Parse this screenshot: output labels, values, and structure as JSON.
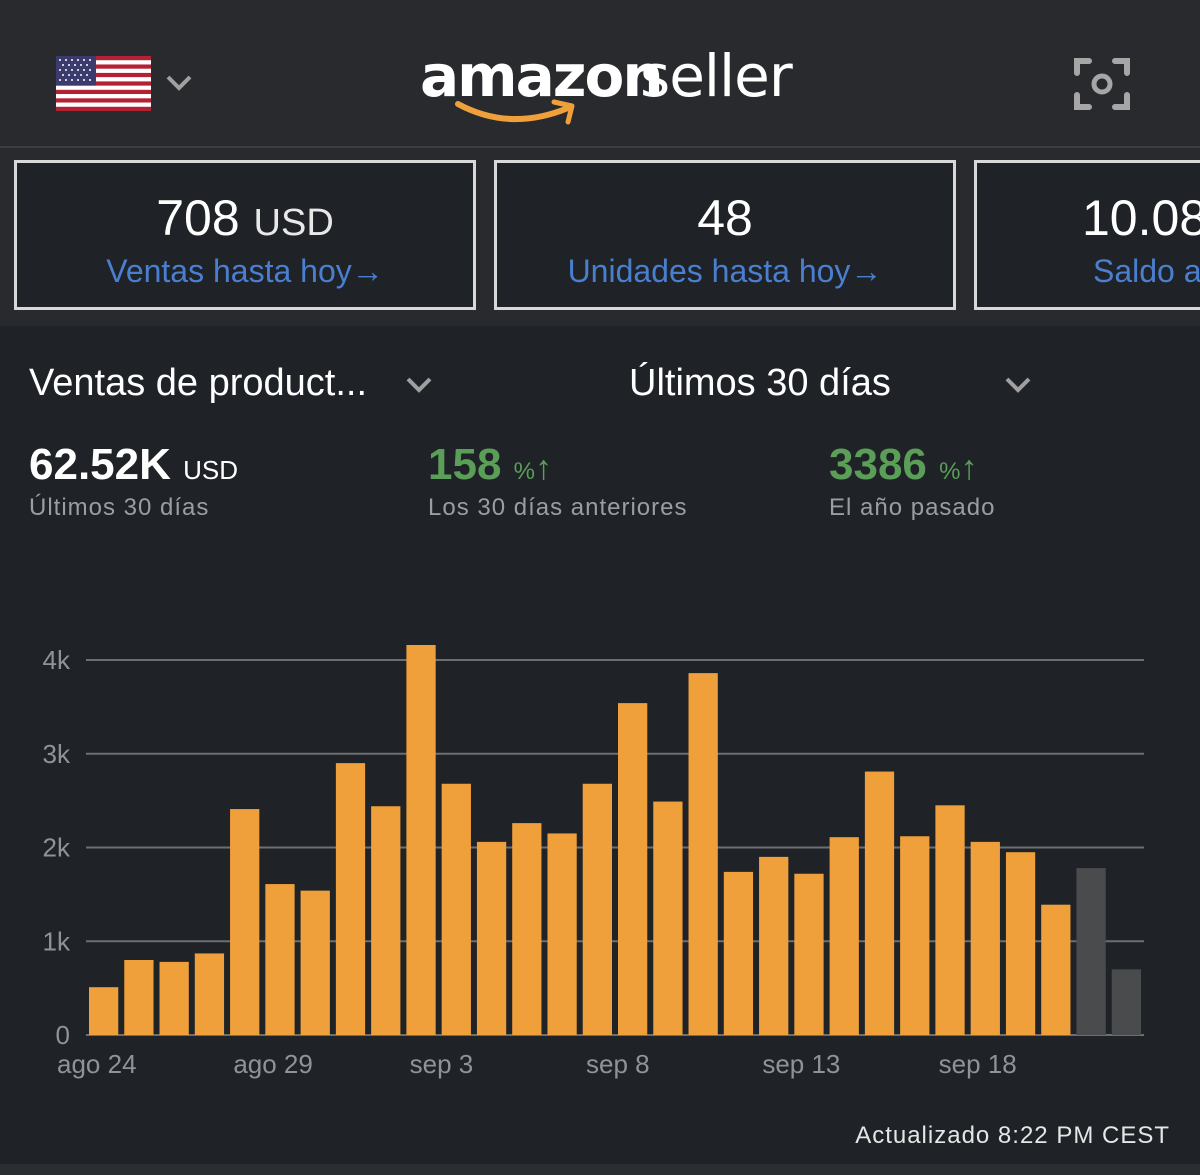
{
  "header": {
    "logo": {
      "brand": "amazon",
      "product": "seller"
    },
    "country_flag": "us-flag-icon",
    "country_selector_icon": "chevron-down-icon",
    "scan_icon": "camera-scan-icon"
  },
  "cards": [
    {
      "value": "708",
      "unit": "USD",
      "label": "Ventas hasta hoy",
      "arrow": "→"
    },
    {
      "value": "48",
      "unit": "",
      "label": "Unidades hasta hoy",
      "arrow": "→"
    },
    {
      "value": "10.08",
      "unit": "",
      "label": "Saldo a",
      "arrow": ""
    }
  ],
  "selectors": {
    "metric": "Ventas de product...",
    "range": "Últimos 30 días"
  },
  "stats": [
    {
      "value": "62.52K",
      "unit": "USD",
      "label": "Últimos 30 días"
    },
    {
      "value": "158",
      "unit": "%",
      "arrow": "↑",
      "label": "Los 30 días anteriores"
    },
    {
      "value": "3386",
      "unit": "%",
      "arrow": "↑",
      "label": "El año pasado"
    }
  ],
  "colors": {
    "bar": "#f0a03a",
    "bar_projected": "#4a4b4d",
    "positive": "#5a9e58",
    "link": "#4a7fd0",
    "grid": "#6b6e72"
  },
  "chart_data": {
    "type": "bar",
    "title": "",
    "xlabel": "",
    "ylabel": "",
    "ylim": [
      0,
      4000
    ],
    "yticks": [
      0,
      1000,
      2000,
      3000,
      4000
    ],
    "ytick_labels": [
      "0",
      "1k",
      "2k",
      "3k",
      "4k"
    ],
    "xtick_labels": [
      {
        "index": 0,
        "label": "ago 24"
      },
      {
        "index": 5,
        "label": "ago 29"
      },
      {
        "index": 10,
        "label": "sep 3"
      },
      {
        "index": 15,
        "label": "sep 8"
      },
      {
        "index": 20,
        "label": "sep 13"
      },
      {
        "index": 25,
        "label": "sep 18"
      }
    ],
    "grid": true,
    "categories": [
      "ago 24",
      "ago 25",
      "ago 26",
      "ago 27",
      "ago 28",
      "ago 29",
      "ago 30",
      "ago 31",
      "sep 1",
      "sep 2",
      "sep 3",
      "sep 4",
      "sep 5",
      "sep 6",
      "sep 7",
      "sep 8",
      "sep 9",
      "sep 10",
      "sep 11",
      "sep 12",
      "sep 13",
      "sep 14",
      "sep 15",
      "sep 16",
      "sep 17",
      "sep 18",
      "sep 19",
      "sep 20",
      "sep 21",
      "sep 22"
    ],
    "series": [
      {
        "name": "Ventas",
        "values": [
          510,
          800,
          780,
          870,
          2410,
          1610,
          1540,
          2900,
          2440,
          4160,
          2680,
          2060,
          2260,
          2150,
          2680,
          3540,
          2490,
          3860,
          1740,
          1900,
          1720,
          2110,
          2810,
          2120,
          2450,
          2060,
          1950,
          1390,
          1780,
          700
        ],
        "projected": [
          false,
          false,
          false,
          false,
          false,
          false,
          false,
          false,
          false,
          false,
          false,
          false,
          false,
          false,
          false,
          false,
          false,
          false,
          false,
          false,
          false,
          false,
          false,
          false,
          false,
          false,
          false,
          false,
          true,
          true
        ]
      }
    ]
  },
  "footer": {
    "updated": "Actualizado 8:22 PM CEST"
  }
}
